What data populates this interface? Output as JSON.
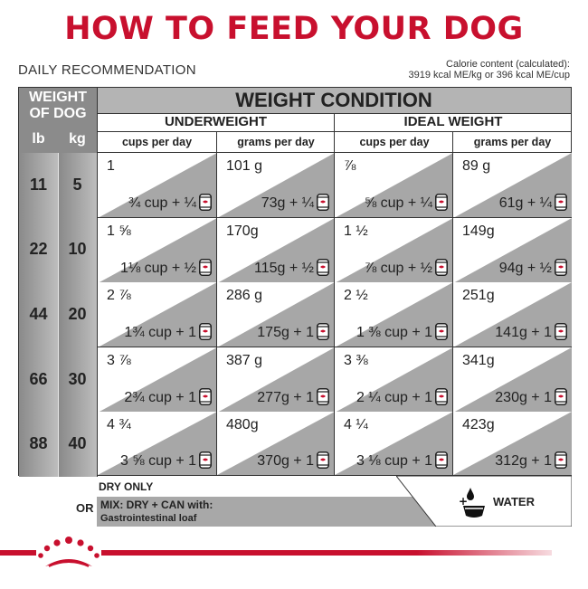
{
  "title": "HOW TO FEED YOUR DOG",
  "daily_label": "DAILY RECOMMENDATION",
  "calorie_line1": "Calorie content (calculated):",
  "calorie_line2": "3919 kcal ME/kg or 396 kcal ME/cup",
  "weight_head_line1": "WEIGHT",
  "weight_head_line2": "OF DOG",
  "unit_lb": "lb",
  "unit_kg": "kg",
  "condition_title": "WEIGHT CONDITION",
  "groups": [
    "UNDERWEIGHT",
    "IDEAL WEIGHT"
  ],
  "subheads": [
    "cups per day",
    "grams per day",
    "cups per day",
    "grams per day"
  ],
  "rows": [
    {
      "lb": "11",
      "kg": "5",
      "cells": [
        {
          "top": "1",
          "bottom": "¾ cup + ¼"
        },
        {
          "top": "101 g",
          "bottom": "73g + ¼"
        },
        {
          "top": "⅞",
          "bottom": "⅝ cup + ¼"
        },
        {
          "top": "89 g",
          "bottom": "61g + ¼"
        }
      ]
    },
    {
      "lb": "22",
      "kg": "10",
      "cells": [
        {
          "top": "1 ⅝",
          "bottom": "1⅛ cup + ½"
        },
        {
          "top": "170g",
          "bottom": "115g + ½"
        },
        {
          "top": "1 ½",
          "bottom": "⅞ cup + ½"
        },
        {
          "top": "149g",
          "bottom": "94g + ½"
        }
      ]
    },
    {
      "lb": "44",
      "kg": "20",
      "cells": [
        {
          "top": "2 ⅞",
          "bottom": "1¾ cup + 1"
        },
        {
          "top": "286 g",
          "bottom": "175g + 1"
        },
        {
          "top": "2 ½",
          "bottom": "1 ⅜ cup + 1"
        },
        {
          "top": "251g",
          "bottom": "141g + 1"
        }
      ]
    },
    {
      "lb": "66",
      "kg": "30",
      "cells": [
        {
          "top": "3 ⅞",
          "bottom": "2¾ cup + 1"
        },
        {
          "top": "387 g",
          "bottom": "277g + 1"
        },
        {
          "top": "3 ⅜",
          "bottom": "2 ¼ cup + 1"
        },
        {
          "top": "341g",
          "bottom": "230g + 1"
        }
      ]
    },
    {
      "lb": "88",
      "kg": "40",
      "cells": [
        {
          "top": "4 ¾",
          "bottom": "3 ⅝ cup + 1"
        },
        {
          "top": "480g",
          "bottom": "370g + 1"
        },
        {
          "top": "4 ¼",
          "bottom": "3 ⅛ cup + 1"
        },
        {
          "top": "423g",
          "bottom": "312g + 1"
        }
      ]
    }
  ],
  "dry_only": "DRY ONLY",
  "or_label": "OR",
  "mix_line1": "MIX: DRY + CAN with:",
  "mix_line2": "Gastrointestinal loaf",
  "water_label": "WATER",
  "colors": {
    "brand_red": "#c8102e",
    "gray_band": "#a7a7a7",
    "header_gray": "#8b8b8b"
  },
  "icons": [
    "can-icon",
    "water-bowl-icon",
    "royal-canin-crown-icon"
  ]
}
